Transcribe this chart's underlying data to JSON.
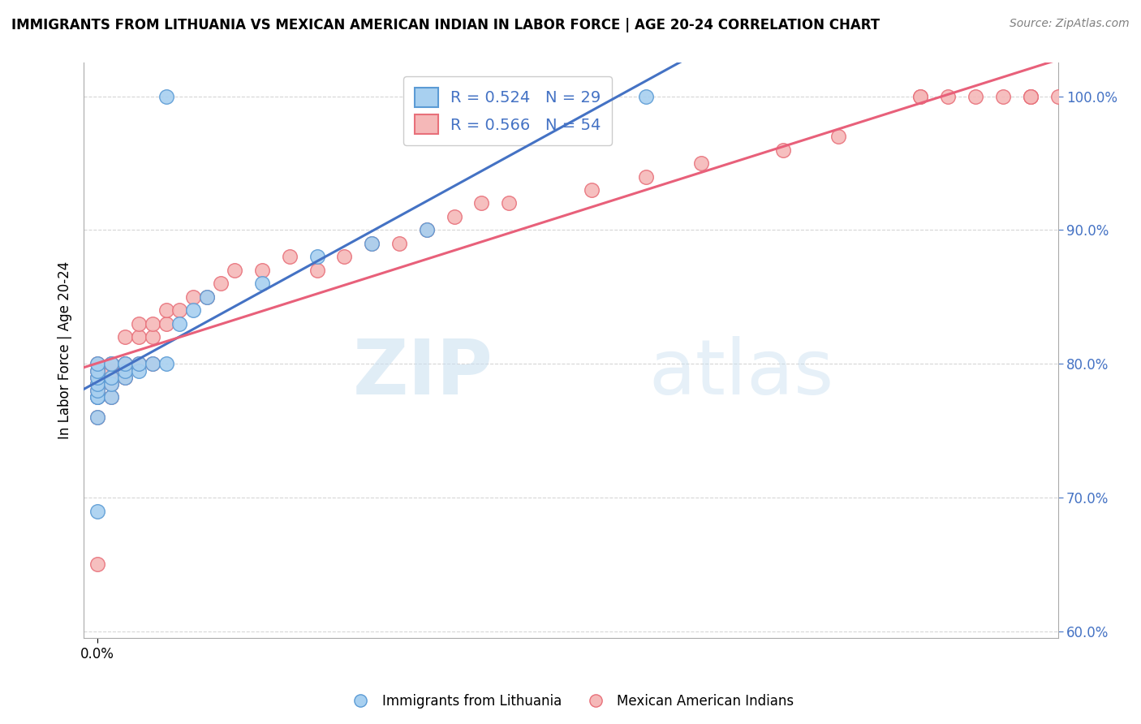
{
  "title": "IMMIGRANTS FROM LITHUANIA VS MEXICAN AMERICAN INDIAN IN LABOR FORCE | AGE 20-24 CORRELATION CHART",
  "source": "Source: ZipAtlas.com",
  "xlabel": "",
  "ylabel": "In Labor Force | Age 20-24",
  "watermark_zip": "ZIP",
  "watermark_atlas": "atlas",
  "legend_blue_R": "R = 0.524",
  "legend_blue_N": "N = 29",
  "legend_pink_R": "R = 0.566",
  "legend_pink_N": "N = 54",
  "legend_blue_label": "Immigrants from Lithuania",
  "legend_pink_label": "Mexican American Indians",
  "ylim": [
    0.595,
    1.025
  ],
  "xlim": [
    -5e-05,
    0.0035
  ],
  "yticks": [
    0.6,
    0.7,
    0.8,
    0.9,
    1.0
  ],
  "ytick_labels": [
    "60.0%",
    "70.0%",
    "80.0%",
    "90.0%",
    "100.0%"
  ],
  "xtick_val": 0.0,
  "xtick_label": "0.0%",
  "blue_color": "#A8D0F0",
  "pink_color": "#F5B8B8",
  "blue_edge_color": "#5B9BD5",
  "pink_edge_color": "#E8707A",
  "blue_line_color": "#4472C4",
  "pink_line_color": "#E8607A",
  "text_color": "#4472C4",
  "background_color": "#FFFFFF",
  "grid_color": "#CCCCCC",
  "blue_scatter_x": [
    0.0,
    0.0,
    0.0,
    0.0,
    0.0,
    0.0,
    0.0,
    0.0,
    0.0,
    5e-05,
    5e-05,
    5e-05,
    5e-05,
    0.0001,
    0.0001,
    0.0001,
    0.00015,
    0.00015,
    0.0002,
    0.00025,
    0.00025,
    0.0003,
    0.00035,
    0.0004,
    0.0006,
    0.0008,
    0.001,
    0.0012,
    0.002
  ],
  "blue_scatter_y": [
    0.775,
    0.775,
    0.78,
    0.785,
    0.79,
    0.795,
    0.8,
    0.76,
    0.69,
    0.775,
    0.785,
    0.79,
    0.8,
    0.79,
    0.795,
    0.8,
    0.795,
    0.8,
    0.8,
    0.8,
    1.0,
    0.83,
    0.84,
    0.85,
    0.86,
    0.88,
    0.89,
    0.9,
    1.0
  ],
  "pink_scatter_x": [
    0.0,
    0.0,
    0.0,
    0.0,
    0.0,
    0.0,
    0.0,
    0.0,
    5e-05,
    5e-05,
    5e-05,
    5e-05,
    5e-05,
    0.0001,
    0.0001,
    0.0001,
    0.0001,
    0.00015,
    0.00015,
    0.00015,
    0.0002,
    0.0002,
    0.0002,
    0.00025,
    0.00025,
    0.0003,
    0.00035,
    0.0004,
    0.00045,
    0.0005,
    0.0006,
    0.0007,
    0.0008,
    0.0009,
    0.001,
    0.0011,
    0.0012,
    0.0013,
    0.0014,
    0.0015,
    0.0018,
    0.002,
    0.0022,
    0.0025,
    0.0027,
    0.003,
    0.003,
    0.0031,
    0.0032,
    0.0033,
    0.0034,
    0.0034,
    0.0034,
    0.0035
  ],
  "pink_scatter_y": [
    0.775,
    0.78,
    0.785,
    0.79,
    0.795,
    0.8,
    0.76,
    0.65,
    0.775,
    0.785,
    0.79,
    0.795,
    0.8,
    0.79,
    0.795,
    0.8,
    0.82,
    0.8,
    0.82,
    0.83,
    0.8,
    0.82,
    0.83,
    0.83,
    0.84,
    0.84,
    0.85,
    0.85,
    0.86,
    0.87,
    0.87,
    0.88,
    0.87,
    0.88,
    0.89,
    0.89,
    0.9,
    0.91,
    0.92,
    0.92,
    0.93,
    0.94,
    0.95,
    0.96,
    0.97,
    1.0,
    1.0,
    1.0,
    1.0,
    1.0,
    1.0,
    1.0,
    1.0,
    1.0
  ]
}
